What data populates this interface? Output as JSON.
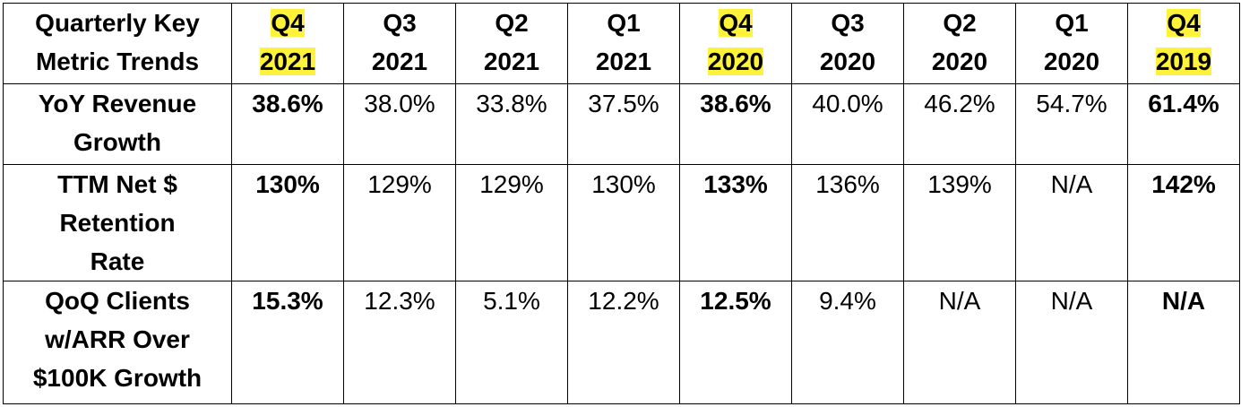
{
  "table": {
    "corner": [
      "Quarterly Key",
      "Metric Trends"
    ],
    "columns": [
      {
        "quarter": "Q4",
        "year": "2021",
        "highlight": true
      },
      {
        "quarter": "Q3",
        "year": "2021",
        "highlight": false
      },
      {
        "quarter": "Q2",
        "year": "2021",
        "highlight": false
      },
      {
        "quarter": "Q1",
        "year": "2021",
        "highlight": false
      },
      {
        "quarter": "Q4",
        "year": "2020",
        "highlight": true
      },
      {
        "quarter": "Q3",
        "year": "2020",
        "highlight": false
      },
      {
        "quarter": "Q2",
        "year": "2020",
        "highlight": false
      },
      {
        "quarter": "Q1",
        "year": "2020",
        "highlight": false
      },
      {
        "quarter": "Q4",
        "year": "2019",
        "highlight": true
      }
    ],
    "rows": [
      {
        "label": [
          "YoY Revenue",
          "Growth"
        ],
        "cells": [
          "38.6%",
          "38.0%",
          "33.8%",
          "37.5%",
          "38.6%",
          "40.0%",
          "46.2%",
          "54.7%",
          "61.4%"
        ]
      },
      {
        "label": [
          "TTM Net $",
          "Retention",
          "Rate"
        ],
        "cells": [
          "130%",
          "129%",
          "129%",
          "130%",
          "133%",
          "136%",
          "139%",
          "N/A",
          "142%"
        ]
      },
      {
        "label": [
          "QoQ Clients",
          "w/ARR Over",
          "$100K Growth"
        ],
        "cells": [
          "15.3%",
          "12.3%",
          "5.1%",
          "12.2%",
          "12.5%",
          "9.4%",
          "N/A",
          "N/A",
          "N/A"
        ]
      }
    ]
  }
}
